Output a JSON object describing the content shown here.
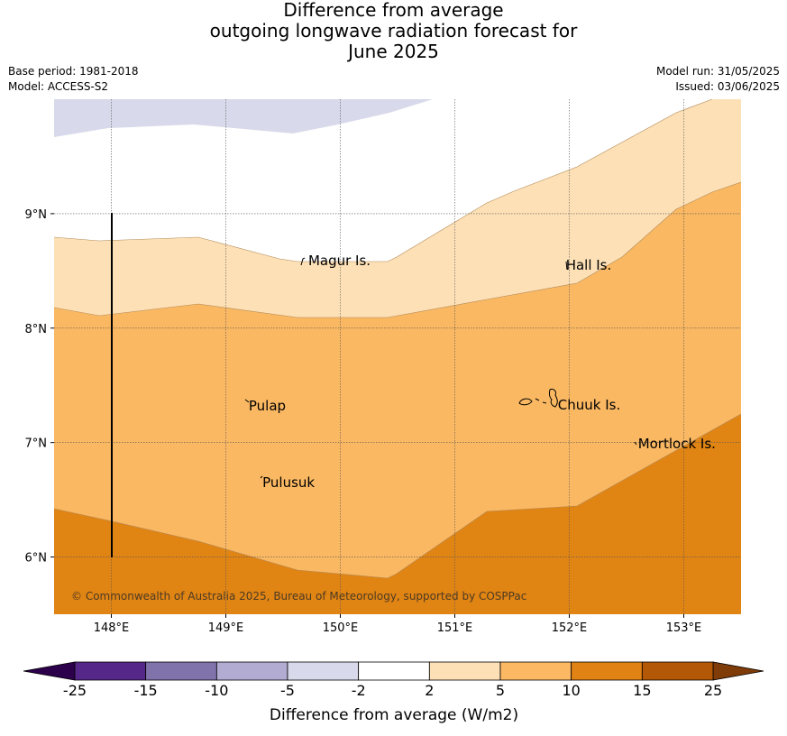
{
  "title": {
    "line1": "Difference from average",
    "line2": "outgoing longwave radiation forecast for",
    "line3": "June 2025"
  },
  "meta": {
    "base_period": "Base period: 1981-2018",
    "model": "Model: ACCESS-S2",
    "model_run": "Model run: 31/05/2025",
    "issued": "Issued: 03/06/2025"
  },
  "map": {
    "lon_range": [
      147.5,
      153.5
    ],
    "lat_range": [
      5.5,
      10.0
    ],
    "lon_ticks": [
      {
        "value": 148,
        "label": "148°E"
      },
      {
        "value": 149,
        "label": "149°E"
      },
      {
        "value": 150,
        "label": "150°E"
      },
      {
        "value": 151,
        "label": "151°E"
      },
      {
        "value": 152,
        "label": "152°E"
      },
      {
        "value": 153,
        "label": "153°E"
      }
    ],
    "lat_ticks": [
      {
        "value": 9,
        "label": "9°N"
      },
      {
        "value": 8,
        "label": "8°N"
      },
      {
        "value": 7,
        "label": "7°N"
      },
      {
        "value": 6,
        "label": "6°N"
      }
    ],
    "places": [
      {
        "name": "Magur Is.",
        "lon": 149.72,
        "lat": 8.55
      },
      {
        "name": "Hall Is.",
        "lon": 151.97,
        "lat": 8.51
      },
      {
        "name": "Pulap",
        "lon": 149.2,
        "lat": 7.28
      },
      {
        "name": "Chuuk Is.",
        "lon": 151.9,
        "lat": 7.29
      },
      {
        "name": "Mortlock Is.",
        "lon": 152.6,
        "lat": 6.95
      },
      {
        "name": "Pulusuk",
        "lon": 149.32,
        "lat": 6.61
      }
    ],
    "credit": "© Commonwealth of Australia 2025, Bureau of Meteorology, supported by COSPPac",
    "colors": {
      "band_neg5_neg2": "#d8d9ea",
      "band_2_5": "#fde0b6",
      "band_5_10": "#fab862",
      "band_10_15": "#e08414",
      "coast": "#000000"
    }
  },
  "colorbar": {
    "label": "Difference from average (W/m2)",
    "ticks": [
      "-25",
      "-15",
      "-10",
      "-5",
      "-2",
      "2",
      "5",
      "10",
      "15",
      "25"
    ],
    "low_extend_color": "#2d004b",
    "high_extend_color": "#7f3b08",
    "colors": [
      "#542788",
      "#8073ac",
      "#b2abd2",
      "#d8daeb",
      "#ffffff",
      "#fee0b6",
      "#fdb863",
      "#e08214",
      "#b35806"
    ]
  }
}
